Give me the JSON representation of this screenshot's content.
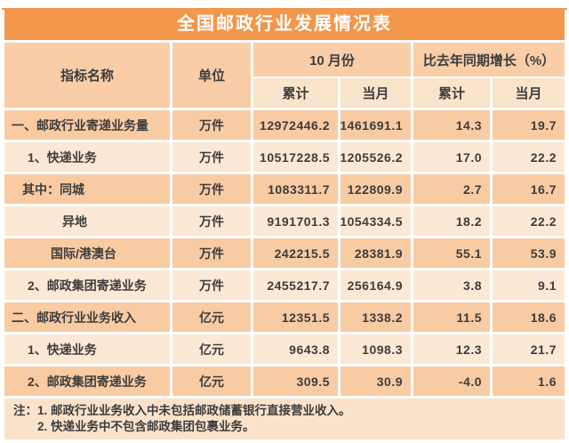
{
  "title": "全国邮政行业发展情况表",
  "header": {
    "indicator_label": "指标名称",
    "unit_label": "单位",
    "month_group_label": "10 月份",
    "growth_group_label": "比去年同期增长（%）",
    "sub_cumulative": "累计",
    "sub_current_month": "当月"
  },
  "rows": [
    {
      "name": "一、邮政行业寄递业务量",
      "unit": "万件",
      "month_cumulative": "12972446.2",
      "month_current": "1461691.1",
      "growth_cumulative": "14.3",
      "growth_current": "19.7"
    },
    {
      "name": "1、快递业务",
      "unit": "万件",
      "month_cumulative": "10517228.5",
      "month_current": "1205526.2",
      "growth_cumulative": "17.0",
      "growth_current": "22.2"
    },
    {
      "name": "其中：同城",
      "unit": "万件",
      "month_cumulative": "1083311.7",
      "month_current": "122809.9",
      "growth_cumulative": "2.7",
      "growth_current": "16.7"
    },
    {
      "name": "异地",
      "unit": "万件",
      "month_cumulative": "9191701.3",
      "month_current": "1054334.5",
      "growth_cumulative": "18.2",
      "growth_current": "22.2"
    },
    {
      "name": "国际/港澳台",
      "unit": "万件",
      "month_cumulative": "242215.5",
      "month_current": "28381.9",
      "growth_cumulative": "55.1",
      "growth_current": "53.9"
    },
    {
      "name": "2、邮政集团寄递业务",
      "unit": "万件",
      "month_cumulative": "2455217.7",
      "month_current": "256164.9",
      "growth_cumulative": "3.8",
      "growth_current": "9.1"
    },
    {
      "name": "二、邮政行业业务收入",
      "unit": "亿元",
      "month_cumulative": "12351.5",
      "month_current": "1338.2",
      "growth_cumulative": "11.5",
      "growth_current": "18.6"
    },
    {
      "name": "1、快递业务",
      "unit": "亿元",
      "month_cumulative": "9643.8",
      "month_current": "1098.3",
      "growth_cumulative": "12.3",
      "growth_current": "21.7"
    },
    {
      "name": "2、邮政集团寄递业务",
      "unit": "亿元",
      "month_cumulative": "309.5",
      "month_current": "30.9",
      "growth_cumulative": "-4.0",
      "growth_current": "1.6"
    }
  ],
  "notes": {
    "line1": "注：1. 邮政行业业务收入中未包括邮政储蓄银行直接营业收入。",
    "line2": "2. 快递业务中不包含邮政集团包裹业务。"
  },
  "colors": {
    "orange": "#F2974B",
    "row_peach": "#F9CBA3",
    "row_cream": "#FBE9D5",
    "header_peach": "#F8CDA8",
    "header_cream": "#FAE4CB",
    "notes_bg": "#FBE3CB",
    "text": "#3D3D3D",
    "title_text": "#FFFFFF"
  }
}
